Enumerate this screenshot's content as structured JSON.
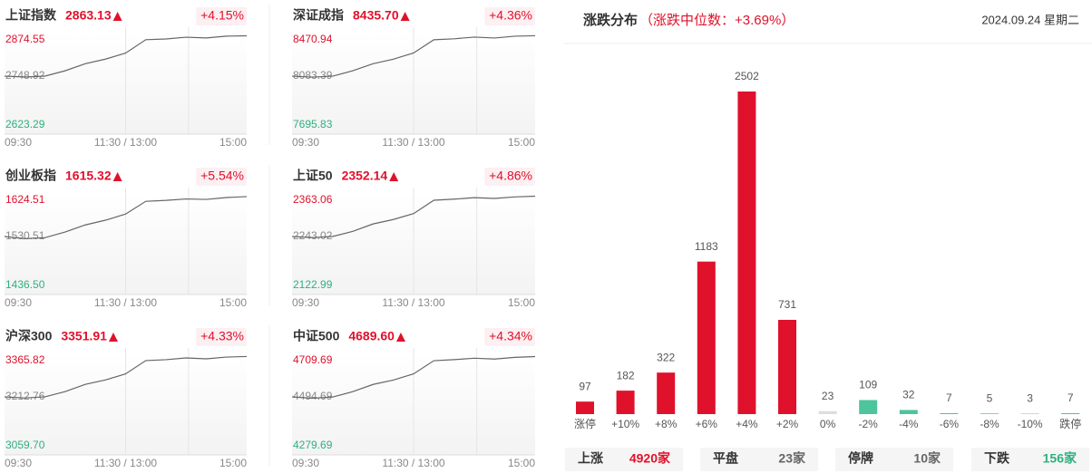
{
  "time_labels": [
    "09:30",
    "11:30 / 13:00",
    "15:00"
  ],
  "indices": [
    {
      "name": "上证指数",
      "price": "2863.13",
      "change": "+4.15%",
      "ylim": [
        2623.29,
        2874.55
      ],
      "y_ticks": [
        {
          "value": 2874.55,
          "label": "2874.55"
        },
        {
          "value": 2748.92,
          "label": "2748.92"
        },
        {
          "value": 2623.29,
          "label": "2623.29"
        }
      ],
      "line": [
        2748.9,
        2746.4,
        2748.9,
        2764,
        2784,
        2797,
        2814,
        2852,
        2854,
        2859,
        2857,
        2862,
        2863
      ]
    },
    {
      "name": "深证成指",
      "price": "8435.70",
      "change": "+4.36%",
      "ylim": [
        7695.83,
        8470.94
      ],
      "y_ticks": [
        {
          "value": 8470.94,
          "label": "8470.94"
        },
        {
          "value": 8083.39,
          "label": "8083.39"
        },
        {
          "value": 7695.83,
          "label": "7695.83"
        }
      ],
      "line": [
        8083,
        8075,
        8083,
        8130,
        8192,
        8231,
        8285,
        8401,
        8409,
        8424,
        8416,
        8432,
        8436
      ]
    },
    {
      "name": "创业板指",
      "price": "1615.32",
      "change": "+5.54%",
      "ylim": [
        1436.5,
        1624.51
      ],
      "y_ticks": [
        {
          "value": 1624.51,
          "label": "1624.51"
        },
        {
          "value": 1530.51,
          "label": "1530.51"
        },
        {
          "value": 1436.5,
          "label": "1436.50"
        }
      ],
      "line": [
        1530.5,
        1526,
        1528,
        1540,
        1555,
        1565,
        1578,
        1605,
        1607,
        1610,
        1609,
        1613,
        1615
      ]
    },
    {
      "name": "上证50",
      "price": "2352.14",
      "change": "+4.86%",
      "ylim": [
        2122.99,
        2363.06
      ],
      "y_ticks": [
        {
          "value": 2363.06,
          "label": "2363.06"
        },
        {
          "value": 2243.02,
          "label": "2243.02"
        },
        {
          "value": 2122.99,
          "label": "2122.99"
        }
      ],
      "line": [
        2243,
        2240,
        2243,
        2257,
        2277,
        2289,
        2305,
        2341,
        2344,
        2348,
        2346,
        2350,
        2352
      ]
    },
    {
      "name": "沪深300",
      "price": "3351.91",
      "change": "+4.33%",
      "ylim": [
        3059.7,
        3365.82
      ],
      "y_ticks": [
        {
          "value": 3365.82,
          "label": "3365.82"
        },
        {
          "value": 3212.76,
          "label": "3212.76"
        },
        {
          "value": 3059.7,
          "label": "3059.70"
        }
      ],
      "line": [
        3212.8,
        3209,
        3213,
        3231,
        3256,
        3271,
        3292,
        3338,
        3341,
        3347,
        3344,
        3350,
        3352
      ]
    },
    {
      "name": "中证500",
      "price": "4689.60",
      "change": "+4.34%",
      "ylim": [
        4279.69,
        4709.69
      ],
      "y_ticks": [
        {
          "value": 4709.69,
          "label": "4709.69"
        },
        {
          "value": 4494.69,
          "label": "4494.69"
        },
        {
          "value": 4279.69,
          "label": "4279.69"
        }
      ],
      "line": [
        4494.7,
        4488,
        4494,
        4520,
        4555,
        4576,
        4606,
        4670,
        4675,
        4682,
        4678,
        4686,
        4690
      ]
    }
  ],
  "distribution": {
    "title": "涨跌分布",
    "subtitle": "（涨跌中位数：+3.69%）",
    "date": "2024.09.24 星期二",
    "categories": [
      "涨停",
      "+10%",
      "+8%",
      "+6%",
      "+4%",
      "+2%",
      "0%",
      "-2%",
      "-4%",
      "-6%",
      "-8%",
      "-10%",
      "跌停"
    ],
    "values": [
      97,
      182,
      322,
      1183,
      2502,
      731,
      23,
      109,
      32,
      7,
      5,
      3,
      7
    ],
    "colors": [
      "#e0112b",
      "#e0112b",
      "#e0112b",
      "#e0112b",
      "#e0112b",
      "#e0112b",
      "#dddddd",
      "#4cc59d",
      "#4cc59d",
      "#4cc59d",
      "#4cc59d",
      "#4cc59d",
      "#4cc59d"
    ]
  },
  "summary": [
    {
      "label": "上涨",
      "value": "4920家",
      "color": "#e0112b"
    },
    {
      "label": "平盘",
      "value": "23家",
      "color": "#666666"
    },
    {
      "label": "停牌",
      "value": "10家",
      "color": "#666666"
    },
    {
      "label": "下跌",
      "value": "156家",
      "color": "#2fb07f"
    }
  ]
}
